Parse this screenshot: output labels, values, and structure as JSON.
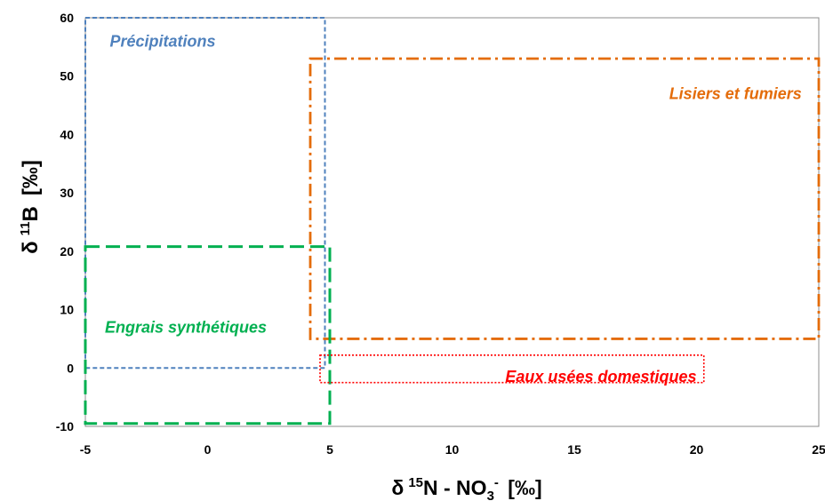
{
  "chart_data": {
    "type": "scatter",
    "subtype": "source-zone diagram (rectangles)",
    "title": "",
    "xlabel": {
      "delta": "δ",
      "sup": "15",
      "base": "N - NO",
      "sub": "3",
      "sup2": "-",
      "unit": " [‰]"
    },
    "ylabel": {
      "delta": "δ",
      "sup": "11",
      "base": "B",
      "unit": "[‰]"
    },
    "xlim": [
      -5,
      25
    ],
    "ylim": [
      -10,
      60
    ],
    "xticks": [
      -5,
      0,
      5,
      10,
      15,
      20,
      25
    ],
    "yticks": [
      -10,
      0,
      10,
      20,
      30,
      40,
      50,
      60
    ],
    "grid": false,
    "legend": "none",
    "zones": [
      {
        "name": "Précipitations",
        "x": [
          -5,
          4.8
        ],
        "y": [
          0,
          60
        ],
        "color": "#4f81bd",
        "dash": "short-dash",
        "label_at": [
          -4,
          56
        ]
      },
      {
        "name": "Lisiers et fumiers",
        "x": [
          4.2,
          25
        ],
        "y": [
          5,
          53
        ],
        "color": "#e46c0a",
        "dash": "dash-dot",
        "label_at": [
          24.3,
          47
        ]
      },
      {
        "name": "Engrais synthétiques",
        "x": [
          -5,
          5
        ],
        "y": [
          -9.5,
          20.8
        ],
        "color": "#00b050",
        "dash": "long-dash",
        "label_at": [
          -4.2,
          7
        ]
      },
      {
        "name": "Eaux usées domestiques",
        "x": [
          4.6,
          20.3
        ],
        "y": [
          -2.5,
          2.2
        ],
        "color": "#ff0000",
        "dash": "dotted",
        "label_at": [
          20,
          -1.5
        ]
      }
    ]
  }
}
